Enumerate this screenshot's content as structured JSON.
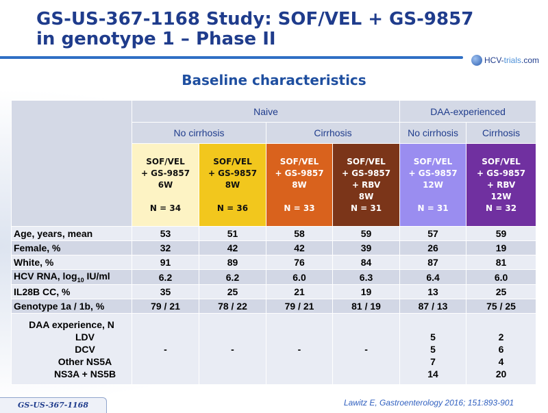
{
  "slide": {
    "title_line1": "GS-US-367-1168 Study: SOF/VEL + GS-9857",
    "title_line2": "in genotype 1 – Phase II",
    "subtitle": "Baseline characteristics",
    "logo_text_prefix": "HCV-",
    "logo_text_accent": "trials",
    "logo_text_suffix": ".com",
    "footer_tag": "GS-US-367-1168",
    "citation": "Lawitz E, Gastroenterology 2016; 151:893-901"
  },
  "table": {
    "group_headers": [
      "Naive",
      "DAA-experienced"
    ],
    "subgroup_headers": [
      "No cirrhosis",
      "Cirrhosis",
      "No cirrhosis",
      "Cirrhosis"
    ],
    "arms": [
      {
        "line1": "SOF/VEL",
        "line2": "+ GS-9857",
        "line3": "6W",
        "line4": "",
        "n": "N = 34"
      },
      {
        "line1": "SOF/VEL",
        "line2": "+ GS-9857",
        "line3": "8W",
        "line4": "",
        "n": "N = 36"
      },
      {
        "line1": "SOF/VEL",
        "line2": "+ GS-9857",
        "line3": "8W",
        "line4": "",
        "n": "N = 33"
      },
      {
        "line1": "SOF/VEL",
        "line2": "+ GS-9857",
        "line3": "+ RBV",
        "line4": "8W",
        "n": "N = 31"
      },
      {
        "line1": "SOF/VEL",
        "line2": "+ GS-9857",
        "line3": "12W",
        "line4": "",
        "n": "N = 31"
      },
      {
        "line1": "SOF/VEL",
        "line2": "+ GS-9857",
        "line3": "+ RBV",
        "line4": "12W",
        "n": "N = 32"
      }
    ],
    "rows": [
      {
        "label": "Age, years, mean",
        "values": [
          "53",
          "51",
          "58",
          "59",
          "57",
          "59"
        ]
      },
      {
        "label": "Female, %",
        "values": [
          "32",
          "42",
          "42",
          "39",
          "26",
          "19"
        ]
      },
      {
        "label": "White, %",
        "values": [
          "91",
          "89",
          "76",
          "84",
          "87",
          "81"
        ]
      },
      {
        "label_main": "HCV RNA, log",
        "label_sub": "10",
        "label_tail": " IU/ml",
        "values": [
          "6.2",
          "6.2",
          "6.0",
          "6.3",
          "6.4",
          "6.0"
        ]
      },
      {
        "label": "IL28B CC, %",
        "values": [
          "35",
          "25",
          "21",
          "19",
          "13",
          "25"
        ]
      },
      {
        "label": "Genotype 1a / 1b, %",
        "values": [
          "79 / 21",
          "78 / 22",
          "79 / 21",
          "81 / 19",
          "87 / 13",
          "75 / 25"
        ]
      }
    ],
    "daa": {
      "label": "DAA experience, N",
      "sub_labels": [
        "LDV",
        "DCV",
        "Other NS5A",
        "NS3A + NS5B"
      ],
      "naive_values": [
        "-",
        "-",
        "-",
        "-"
      ],
      "col5": [
        "5",
        "5",
        "7",
        "14"
      ],
      "col6": [
        "2",
        "6",
        "4",
        "20"
      ]
    }
  }
}
